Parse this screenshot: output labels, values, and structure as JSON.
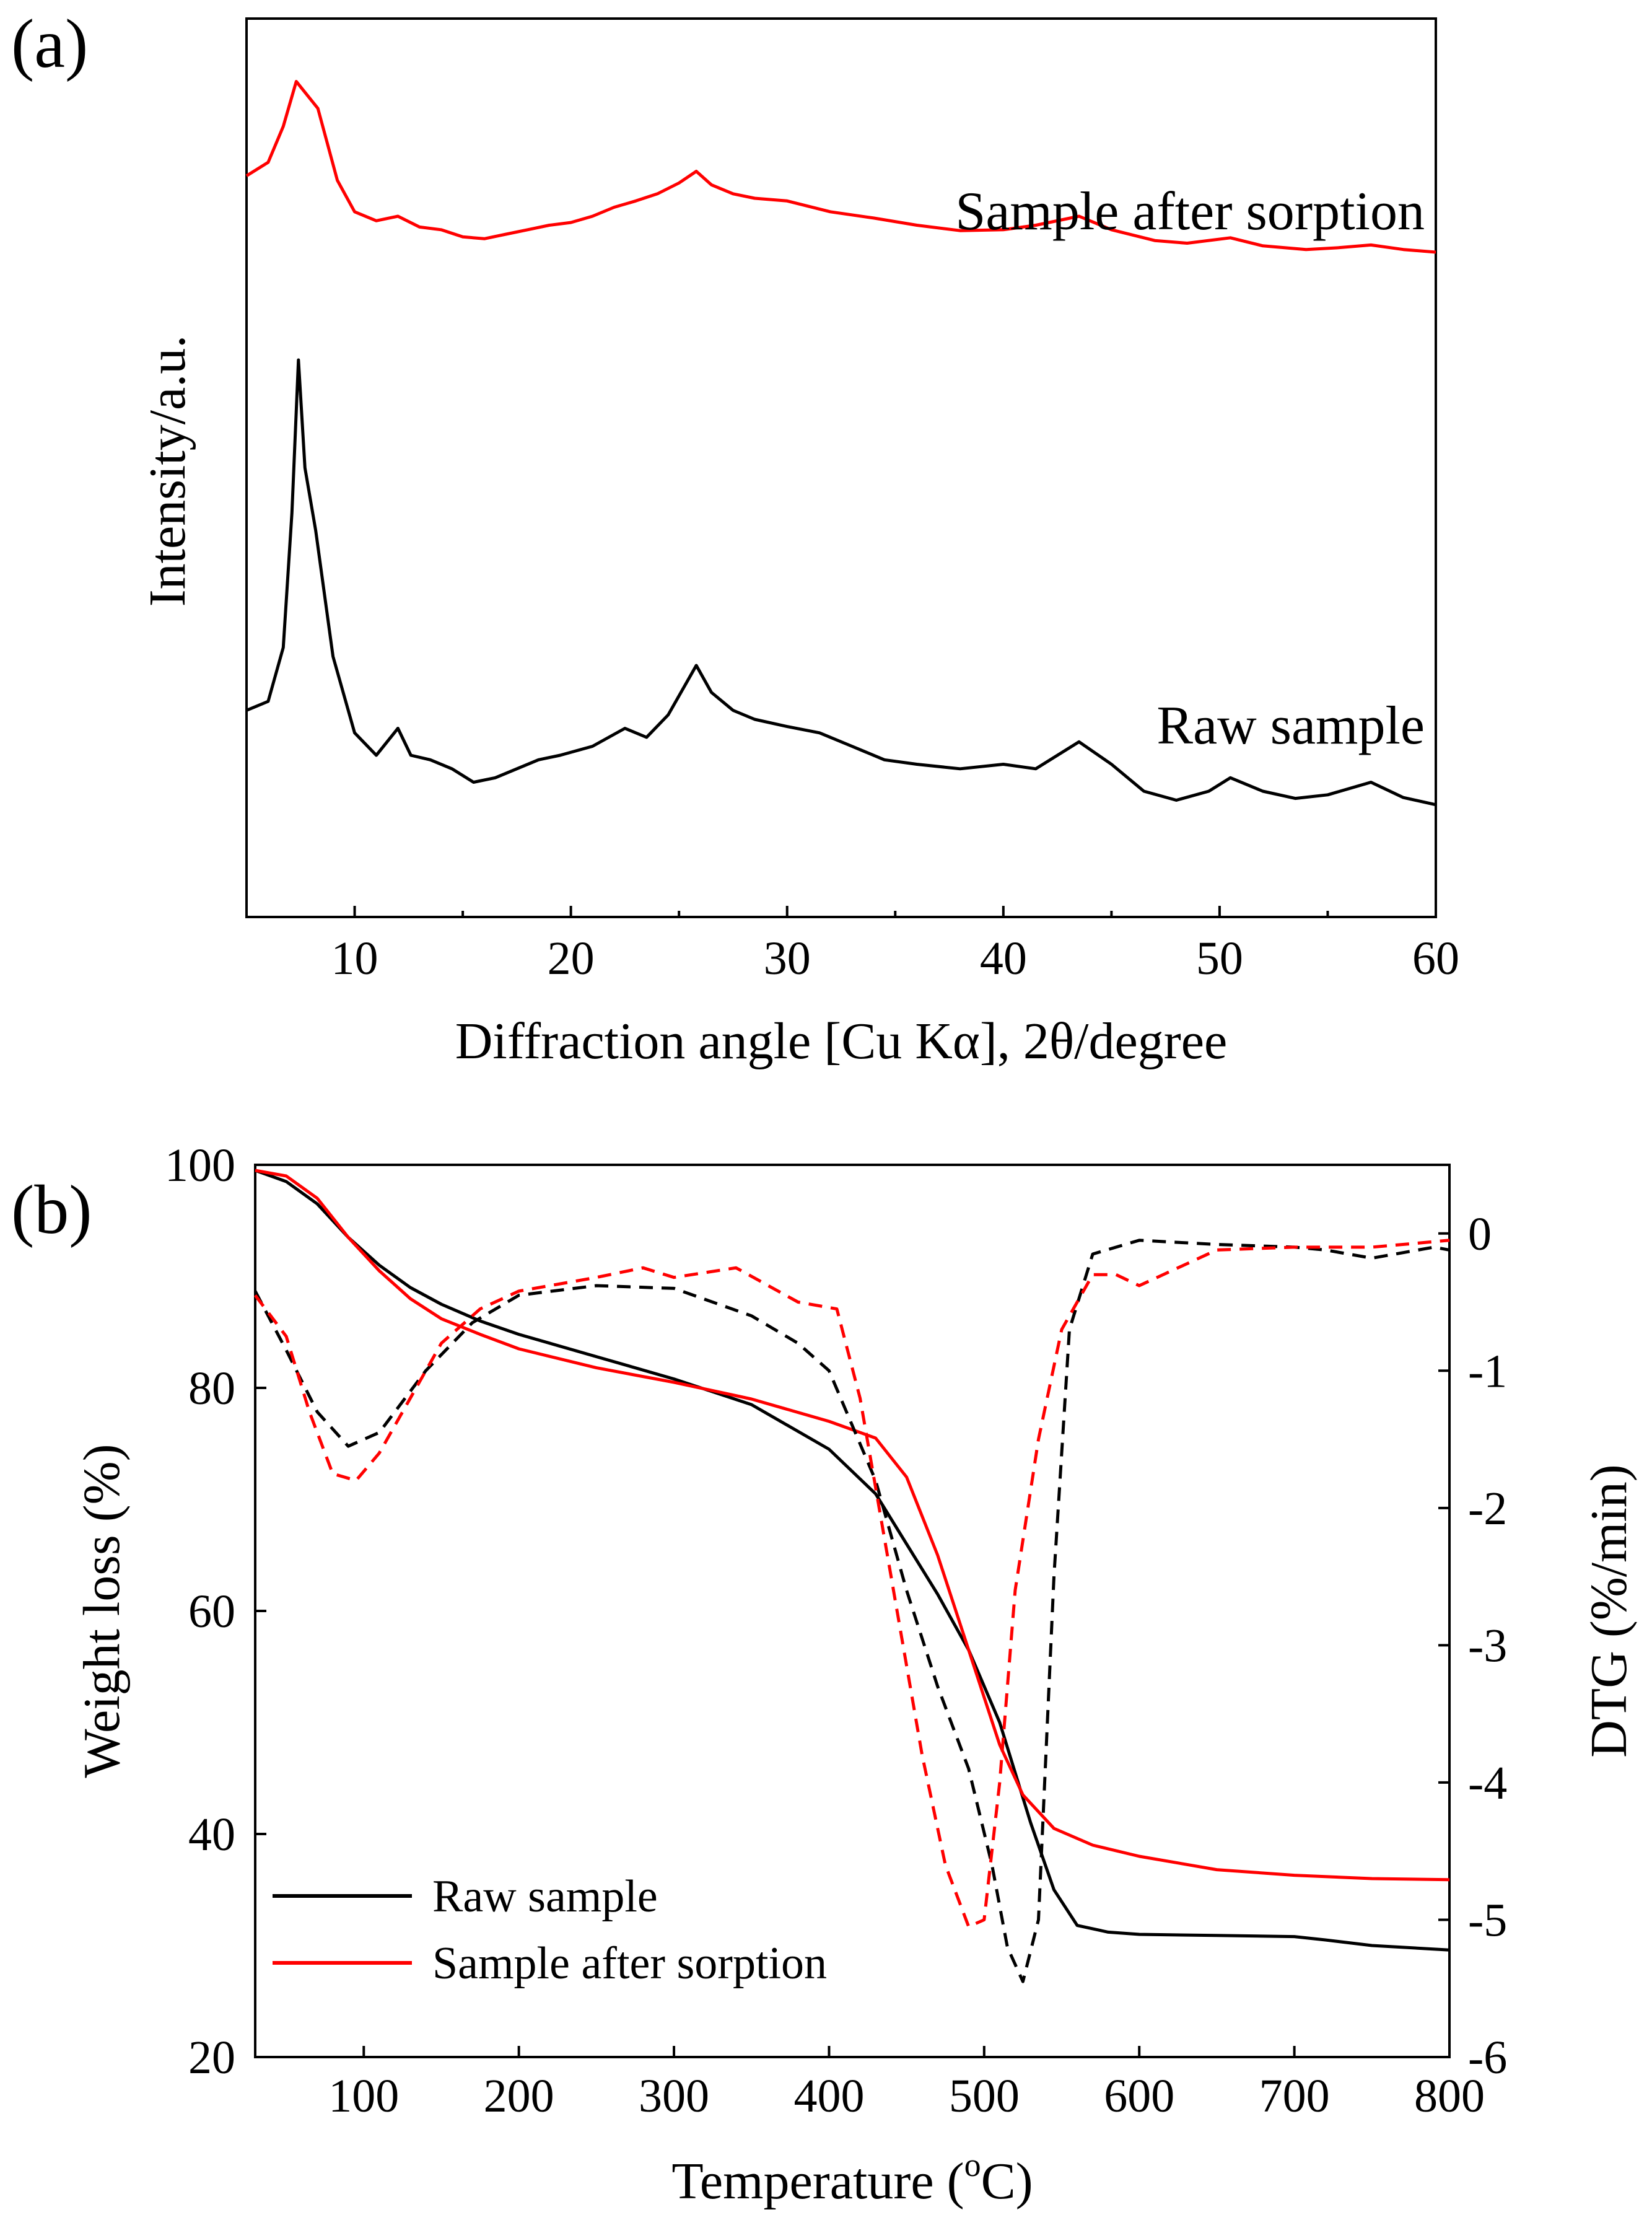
{
  "chart_data": [
    {
      "type": "line",
      "panel_label": "(a)",
      "title": "",
      "xlabel": "Diffraction angle [Cu Kα], 2θ/degree",
      "ylabel": "Intensity/a.u.",
      "xlim": [
        5,
        60
      ],
      "ylim": [
        0,
        100
      ],
      "x_ticks": [
        10,
        20,
        30,
        40,
        50,
        60
      ],
      "y_ticks_shown": false,
      "colors": {
        "after": "#ff0000",
        "raw": "#000000"
      },
      "series": [
        {
          "name": "Sample after sorption",
          "color": "#ff0000",
          "x": [
            5,
            6,
            6.7,
            7.3,
            8.3,
            9.2,
            10,
            11,
            12,
            13,
            14,
            15,
            16,
            17,
            18,
            19,
            20,
            21,
            22,
            23,
            24,
            25,
            25.8,
            26.5,
            27.5,
            28.5,
            30,
            32,
            34,
            36,
            38,
            40,
            41.5,
            43.5,
            45,
            47,
            48.5,
            50.5,
            52,
            54,
            55.5,
            57,
            58.5,
            60
          ],
          "y": [
            82.5,
            84,
            88,
            93,
            90,
            82,
            78.5,
            77.5,
            78,
            76.8,
            76.5,
            75.7,
            75.5,
            76,
            76.5,
            77,
            77.3,
            78,
            79,
            79.7,
            80.5,
            81.7,
            83,
            81.5,
            80.5,
            80,
            79.7,
            78.5,
            77.8,
            77,
            76.4,
            76.5,
            77,
            78,
            76.5,
            75.3,
            75,
            75.6,
            74.7,
            74.3,
            74.5,
            74.8,
            74.3,
            74
          ]
        },
        {
          "name": "Raw sample",
          "color": "#000000",
          "x": [
            5,
            6,
            6.7,
            7.1,
            7.4,
            7.7,
            8.2,
            9,
            10,
            11,
            12,
            12.6,
            13.5,
            14.5,
            15.5,
            16.5,
            17.5,
            18.5,
            19.5,
            21,
            22.5,
            23.5,
            24.5,
            25.8,
            26.5,
            27.5,
            28.5,
            30,
            31.5,
            33,
            34.5,
            36,
            38,
            40,
            41.5,
            43.5,
            45,
            46.5,
            48,
            49.5,
            50.5,
            52,
            53.5,
            55,
            57,
            58.5,
            60
          ],
          "y": [
            23,
            24,
            30,
            45,
            62,
            50,
            43,
            29,
            20.5,
            18,
            21,
            18,
            17.5,
            16.5,
            15,
            15.5,
            16.5,
            17.5,
            18,
            19,
            21,
            20,
            22.5,
            28,
            25,
            23,
            22,
            21.2,
            20.5,
            19,
            17.5,
            17,
            16.5,
            17,
            16.5,
            19.5,
            17,
            14,
            13,
            14,
            15.5,
            14,
            13.2,
            13.6,
            15,
            13.3,
            12.5
          ]
        }
      ],
      "annotations": [
        "Sample after sorption",
        "Raw sample"
      ]
    },
    {
      "type": "line",
      "panel_label": "(b)",
      "title": "",
      "xlabel_prefix": "Temperature (",
      "xlabel_sup": "o",
      "xlabel_suffix": "C)",
      "ylabel": "Weight loss (%)",
      "y2label": "DTG (%/min)",
      "xlim": [
        30,
        800
      ],
      "ylim": [
        20,
        100
      ],
      "y2lim": [
        -6,
        0.5
      ],
      "x_ticks": [
        100,
        200,
        300,
        400,
        500,
        600,
        700,
        800
      ],
      "y_ticks": [
        20,
        40,
        60,
        80,
        100
      ],
      "y2_ticks": [
        0,
        -1,
        -2,
        -3,
        -4,
        -5,
        -6
      ],
      "legend": {
        "position": "bottom-left",
        "entries": [
          {
            "label": "Raw sample",
            "color": "#000000"
          },
          {
            "label": "Sample after sorption",
            "color": "#ff0000"
          }
        ]
      },
      "series": [
        {
          "name": "Raw sample",
          "axis": "left",
          "style": "solid",
          "color": "#000000",
          "x": [
            30,
            50,
            70,
            90,
            110,
            130,
            150,
            175,
            200,
            250,
            300,
            350,
            400,
            430,
            450,
            470,
            490,
            510,
            530,
            545,
            560,
            580,
            600,
            650,
            700,
            720,
            750,
            800
          ],
          "y": [
            99.5,
            98.5,
            96.5,
            93.5,
            91,
            89,
            87.5,
            86,
            84.8,
            82.8,
            80.8,
            78.5,
            74.5,
            70.5,
            66,
            61.5,
            56.5,
            50,
            41,
            35,
            31.8,
            31.2,
            31,
            30.9,
            30.8,
            30.5,
            30,
            29.6
          ]
        },
        {
          "name": "Sample after sorption",
          "axis": "left",
          "style": "solid",
          "color": "#ff0000",
          "x": [
            30,
            50,
            70,
            90,
            110,
            130,
            150,
            175,
            200,
            250,
            300,
            350,
            400,
            430,
            450,
            470,
            490,
            510,
            525,
            545,
            570,
            600,
            650,
            700,
            750,
            800
          ],
          "y": [
            99.5,
            99,
            97,
            93.5,
            90.5,
            88,
            86.2,
            84.8,
            83.5,
            81.8,
            80.5,
            79,
            77,
            75.5,
            72,
            65,
            56.5,
            48,
            43.5,
            40.5,
            39,
            38,
            36.8,
            36.3,
            36,
            35.9
          ]
        },
        {
          "name": "Raw sample DTG",
          "axis": "right",
          "style": "dashed",
          "color": "#000000",
          "x": [
            30,
            50,
            70,
            90,
            110,
            140,
            170,
            200,
            250,
            300,
            350,
            380,
            400,
            430,
            450,
            470,
            490,
            505,
            515,
            525,
            535,
            545,
            555,
            570,
            600,
            650,
            700,
            720,
            750,
            790,
            800
          ],
          "y": [
            -0.42,
            -0.85,
            -1.3,
            -1.55,
            -1.45,
            -1.0,
            -0.65,
            -0.45,
            -0.38,
            -0.4,
            -0.6,
            -0.8,
            -1.0,
            -1.8,
            -2.6,
            -3.3,
            -3.9,
            -4.6,
            -5.2,
            -5.45,
            -5.0,
            -2.5,
            -0.7,
            -0.15,
            -0.05,
            -0.08,
            -0.1,
            -0.12,
            -0.18,
            -0.1,
            -0.12
          ]
        },
        {
          "name": "Sample after sorption DTG",
          "axis": "right",
          "style": "dashed",
          "color": "#ff0000",
          "x": [
            30,
            50,
            65,
            80,
            95,
            110,
            130,
            150,
            175,
            200,
            250,
            280,
            300,
            340,
            380,
            405,
            420,
            440,
            460,
            475,
            490,
            500,
            510,
            520,
            535,
            550,
            570,
            585,
            600,
            650,
            700,
            750,
            800
          ],
          "y": [
            -0.45,
            -0.75,
            -1.3,
            -1.75,
            -1.8,
            -1.6,
            -1.2,
            -0.8,
            -0.55,
            -0.42,
            -0.32,
            -0.25,
            -0.32,
            -0.25,
            -0.5,
            -0.55,
            -1.2,
            -2.5,
            -3.8,
            -4.6,
            -5.05,
            -5.0,
            -4.0,
            -2.6,
            -1.5,
            -0.7,
            -0.3,
            -0.3,
            -0.38,
            -0.12,
            -0.1,
            -0.1,
            -0.05
          ]
        }
      ]
    }
  ]
}
